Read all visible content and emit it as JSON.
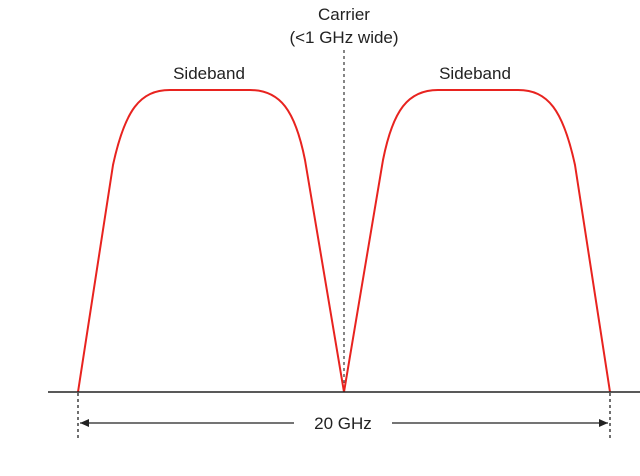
{
  "carrier": {
    "line1": "Carrier",
    "line2": "(<1 GHz wide)"
  },
  "sidebands": {
    "left_label": "Sideband",
    "right_label": "Sideband"
  },
  "bandwidth": {
    "label": "20 GHz"
  },
  "colors": {
    "sideband_curve": "#e8231f",
    "lines": "#222222"
  }
}
